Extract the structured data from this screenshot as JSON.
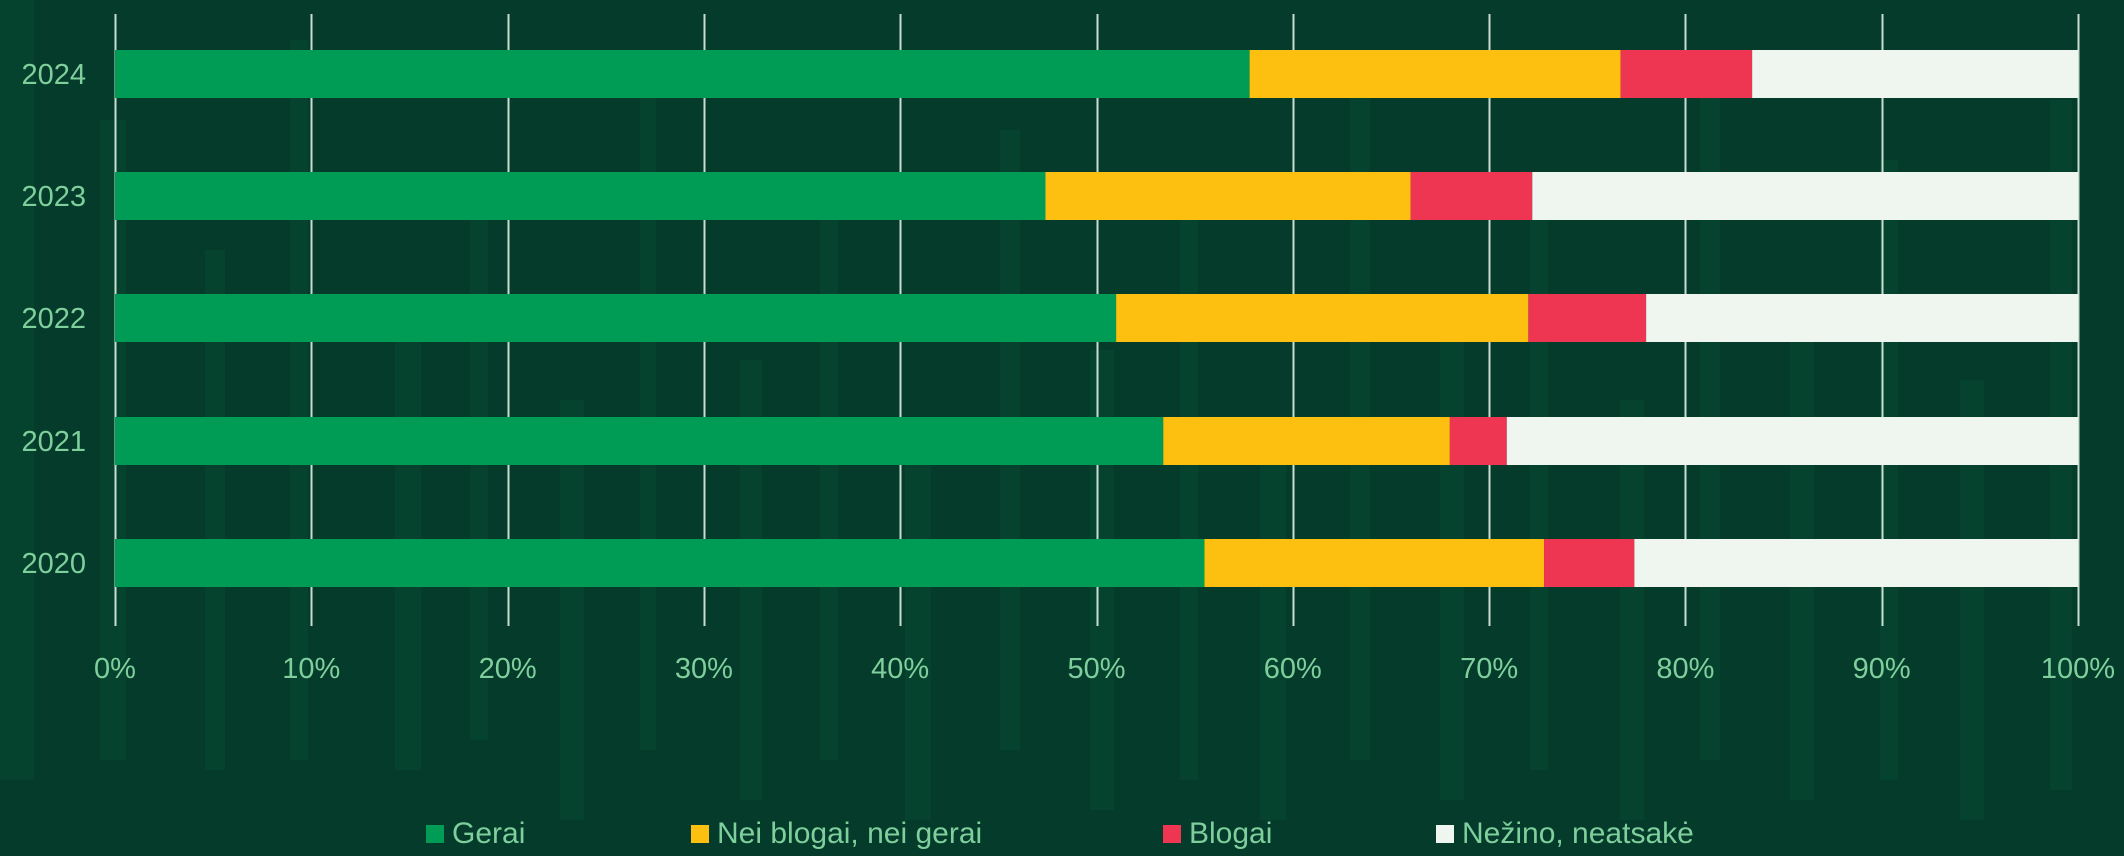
{
  "chart_data": {
    "type": "bar",
    "orientation": "horizontal",
    "stacked": true,
    "categories": [
      "2024",
      "2023",
      "2022",
      "2021",
      "2020"
    ],
    "series": [
      {
        "name": "Gerai",
        "color": "#009b55",
        "values": [
          57.8,
          47.4,
          51.0,
          53.4,
          55.5
        ]
      },
      {
        "name": "Nei blogai, nei gerai",
        "color": "#fdc010",
        "values": [
          18.9,
          18.6,
          21.0,
          14.6,
          17.3
        ]
      },
      {
        "name": "Blogai",
        "color": "#ee3551",
        "values": [
          6.7,
          6.2,
          6.0,
          2.9,
          4.6
        ]
      },
      {
        "name": "Nežino, neatsakė",
        "color": "#eef6ef",
        "values": [
          16.6,
          27.8,
          22.0,
          29.1,
          22.6
        ]
      }
    ],
    "xlim": [
      0,
      100
    ],
    "x_ticks": [
      "0%",
      "10%",
      "20%",
      "30%",
      "40%",
      "50%",
      "60%",
      "70%",
      "80%",
      "90%",
      "100%"
    ],
    "grid": true,
    "legend_position": "bottom",
    "title": "",
    "xlabel": "",
    "ylabel": ""
  },
  "legend": {
    "items": [
      {
        "label": "Gerai",
        "color": "#009b55"
      },
      {
        "label": "Nei blogai, nei gerai",
        "color": "#fdc010"
      },
      {
        "label": "Blogai",
        "color": "#ee3551"
      },
      {
        "label": "Nežino, neatsakė",
        "color": "#eef6ef"
      }
    ]
  },
  "colors": {
    "background": "#043b2b",
    "grid": "#dfeee4",
    "tick_text": "#7fcf9c",
    "category_text": "#7fcf9c"
  }
}
